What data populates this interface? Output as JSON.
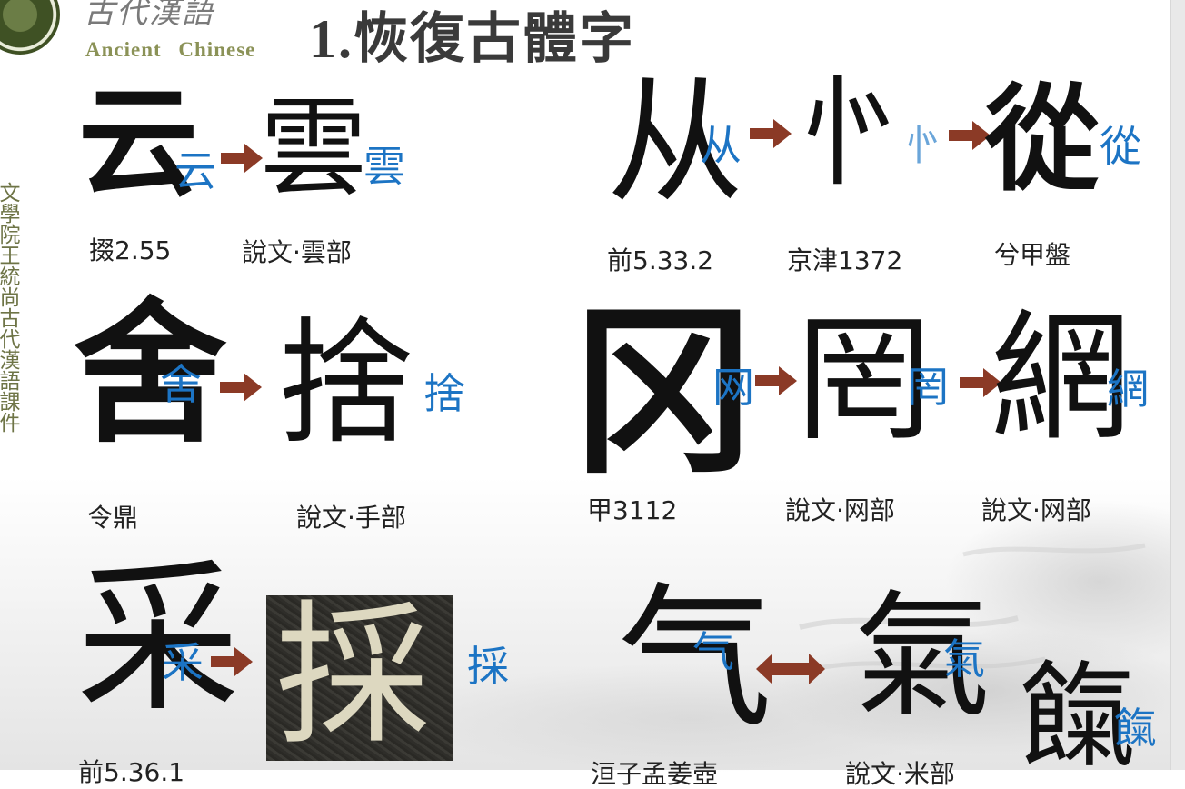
{
  "header": {
    "logo_title": "古代漢語",
    "logo_subtitle": "Ancient Chinese",
    "slide_title": "1.恢復古體字"
  },
  "side_title": "文學院王統尚古代漢語課件",
  "colors": {
    "modern_text": "#1c74c4",
    "modern_text_light": "#6aa5d9",
    "arrow": "#8b3a26",
    "side_title": "#6e7446",
    "logo_subtitle": "#8b9257"
  },
  "rows": {
    "row1_left": {
      "ancient_glyph": "云",
      "modern_1": "云",
      "seal_glyph": "雲",
      "modern_2": "雲",
      "caption_1": "掇2.55",
      "caption_2": "說文·雲部"
    },
    "row1_right": {
      "glyph_1": "从",
      "modern_1": "从",
      "glyph_2": "㣺",
      "modern_2": "㣺",
      "glyph_3": "從",
      "modern_3": "從",
      "caption_1": "前5.33.2",
      "caption_2": "京津1372",
      "caption_3": "兮甲盤"
    },
    "row2_left": {
      "ancient_glyph": "舍",
      "modern_1": "舍",
      "seal_glyph": "捨",
      "modern_2": "捨",
      "caption_1": "令鼎",
      "caption_2": "說文·手部"
    },
    "row2_right": {
      "glyph_1": "冈",
      "modern_1": "网",
      "glyph_2": "罔",
      "modern_2": "罔",
      "glyph_3": "網",
      "modern_3": "網",
      "caption_1": "甲3112",
      "caption_2": "說文·网部",
      "caption_3": "說文·网部"
    },
    "row3_left": {
      "ancient_glyph": "采",
      "modern_1": "采",
      "rubbing_glyph": "採",
      "modern_2": "採",
      "caption_1": "前5.36.1"
    },
    "row3_right": {
      "glyph_1": "气",
      "modern_1": "气",
      "glyph_2": "氣",
      "modern_2": "氣",
      "glyph_3": "餼",
      "modern_3": "餼",
      "caption_1": "洹子孟姜壺",
      "caption_2": "說文·米部"
    }
  }
}
